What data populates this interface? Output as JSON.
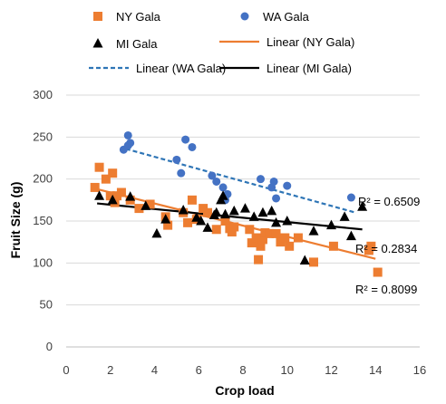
{
  "chart_data": {
    "type": "scatter",
    "xlabel": "Crop load",
    "ylabel": "Fruit Size (g)",
    "xlim": [
      0,
      16
    ],
    "ylim": [
      0,
      300
    ],
    "x_ticks": [
      0,
      2,
      4,
      6,
      8,
      10,
      12,
      14,
      16
    ],
    "y_ticks": [
      0,
      50,
      100,
      150,
      200,
      250,
      300
    ],
    "grid": "horizontal",
    "legend_position": "top",
    "series": [
      {
        "name": "NY Gala",
        "marker": "square",
        "color": "#ED7D31",
        "points": [
          [
            1.3,
            190
          ],
          [
            1.5,
            214
          ],
          [
            1.8,
            200
          ],
          [
            2.0,
            180
          ],
          [
            2.1,
            207
          ],
          [
            2.2,
            172
          ],
          [
            2.3,
            180
          ],
          [
            2.5,
            184
          ],
          [
            2.9,
            175
          ],
          [
            3.3,
            165
          ],
          [
            3.8,
            170
          ],
          [
            4.5,
            155
          ],
          [
            4.6,
            145
          ],
          [
            5.3,
            160
          ],
          [
            5.5,
            148
          ],
          [
            5.7,
            175
          ],
          [
            5.9,
            152
          ],
          [
            6.2,
            165
          ],
          [
            6.4,
            160
          ],
          [
            6.8,
            140
          ],
          [
            7.2,
            150
          ],
          [
            7.4,
            141
          ],
          [
            7.5,
            137
          ],
          [
            7.6,
            143
          ],
          [
            8.3,
            140
          ],
          [
            8.4,
            124
          ],
          [
            8.6,
            130
          ],
          [
            8.7,
            104
          ],
          [
            8.8,
            120
          ],
          [
            8.9,
            128
          ],
          [
            9.0,
            136
          ],
          [
            9.2,
            135
          ],
          [
            9.5,
            135
          ],
          [
            9.7,
            125
          ],
          [
            9.9,
            130
          ],
          [
            10.1,
            120
          ],
          [
            10.5,
            130
          ],
          [
            11.2,
            101
          ],
          [
            12.1,
            120
          ],
          [
            13.7,
            115
          ],
          [
            13.8,
            120
          ],
          [
            14.1,
            89
          ]
        ]
      },
      {
        "name": "WA Gala",
        "marker": "circle",
        "color": "#4472C4",
        "points": [
          [
            2.6,
            235
          ],
          [
            2.8,
            252
          ],
          [
            2.8,
            240
          ],
          [
            2.9,
            243
          ],
          [
            5.0,
            223
          ],
          [
            5.2,
            207
          ],
          [
            5.4,
            247
          ],
          [
            5.7,
            238
          ],
          [
            6.6,
            204
          ],
          [
            6.8,
            197
          ],
          [
            7.1,
            190
          ],
          [
            7.2,
            175
          ],
          [
            7.3,
            182
          ],
          [
            8.8,
            200
          ],
          [
            9.3,
            190
          ],
          [
            9.4,
            197
          ],
          [
            9.5,
            177
          ],
          [
            10.0,
            192
          ],
          [
            12.9,
            178
          ]
        ]
      },
      {
        "name": "MI Gala",
        "marker": "triangle",
        "color": "#000000",
        "points": [
          [
            1.5,
            180
          ],
          [
            2.1,
            175
          ],
          [
            2.9,
            179
          ],
          [
            3.6,
            168
          ],
          [
            4.1,
            135
          ],
          [
            4.5,
            152
          ],
          [
            5.3,
            163
          ],
          [
            5.9,
            154
          ],
          [
            6.1,
            150
          ],
          [
            6.4,
            142
          ],
          [
            6.7,
            157
          ],
          [
            6.8,
            160
          ],
          [
            7.0,
            175
          ],
          [
            7.1,
            180
          ],
          [
            7.2,
            158
          ],
          [
            7.6,
            162
          ],
          [
            8.1,
            165
          ],
          [
            8.5,
            155
          ],
          [
            8.9,
            160
          ],
          [
            9.3,
            162
          ],
          [
            9.5,
            148
          ],
          [
            10.0,
            150
          ],
          [
            10.8,
            103
          ],
          [
            11.2,
            138
          ],
          [
            12.0,
            145
          ],
          [
            12.6,
            155
          ],
          [
            12.9,
            132
          ],
          [
            13.4,
            167
          ]
        ]
      }
    ],
    "trendlines": [
      {
        "name": "Linear (NY Gala)",
        "color": "#ED7D31",
        "style": "solid",
        "from": [
          1.4,
          188
        ],
        "to": [
          14.0,
          105
        ],
        "r2": "R² = 0.8099"
      },
      {
        "name": "Linear (WA Gala)",
        "color": "#2E75B6",
        "style": "dashed",
        "from": [
          2.7,
          236
        ],
        "to": [
          13.1,
          160
        ],
        "r2": "R² = 0.6509"
      },
      {
        "name": "Linear (MI Gala)",
        "color": "#000000",
        "style": "solid",
        "from": [
          1.4,
          171
        ],
        "to": [
          13.4,
          140
        ],
        "r2": "R² = 0.2834"
      }
    ]
  }
}
